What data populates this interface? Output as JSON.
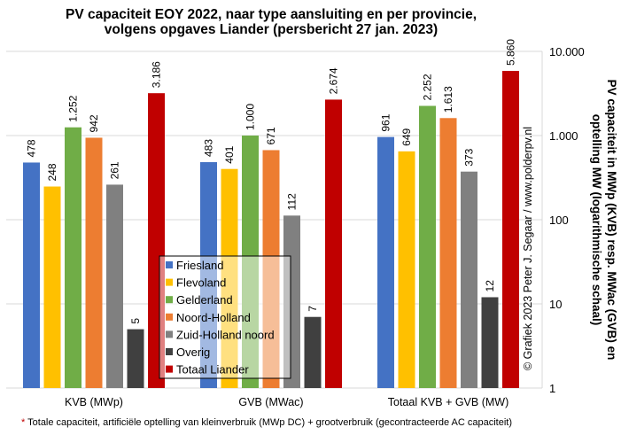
{
  "chart_data": {
    "type": "bar",
    "title": "PV capaciteit EOY 2022, naar type aansluiting  en per provincie,",
    "subtitle": "volgens opgaves Liander (persbericht 27 jan. 2023)",
    "categories": [
      "KVB (MWp)",
      "GVB (MWac)",
      "Totaal KVB + GVB (MW)"
    ],
    "series": [
      {
        "name": "Friesland",
        "color": "#4472C4",
        "values": [
          478,
          483,
          961
        ],
        "labels": [
          "478",
          "483",
          "961"
        ]
      },
      {
        "name": "Flevoland",
        "color": "#FFC000",
        "values": [
          248,
          401,
          649
        ],
        "labels": [
          "248",
          "401",
          "649"
        ]
      },
      {
        "name": "Gelderland",
        "color": "#70AD47",
        "values": [
          1252,
          1000,
          2252
        ],
        "labels": [
          "1.252",
          "1.000",
          "2.252"
        ]
      },
      {
        "name": "Noord-Holland",
        "color": "#ED7D31",
        "values": [
          942,
          671,
          1613
        ],
        "labels": [
          "942",
          "671",
          "1.613"
        ]
      },
      {
        "name": "Zuid-Holland noord",
        "color": "#808080",
        "values": [
          261,
          112,
          373
        ],
        "labels": [
          "261",
          "112",
          "373"
        ]
      },
      {
        "name": "Overig",
        "color": "#404040",
        "values": [
          5,
          7,
          12
        ],
        "labels": [
          "5",
          "7",
          "12"
        ]
      },
      {
        "name": "Totaal Liander",
        "color": "#C00000",
        "values": [
          3186,
          2674,
          5860
        ],
        "labels": [
          "3.186",
          "2.674",
          "5.860"
        ]
      }
    ],
    "ylabel": "PV capaciteit in MWp (KVB) resp. MWac (GVB) en optelling MW (logarithmische schaal)",
    "ylabel_lines": [
      "PV capaciteit in MWp (KVB) resp. MWac (GVB) en",
      "optelling MW (logarithmische  schaal)"
    ],
    "yscale": "log",
    "ylim": [
      1,
      10000
    ],
    "yticks": [
      1,
      10,
      100,
      1000,
      10000
    ],
    "ytick_labels": [
      "1",
      "10",
      "100",
      "1.000",
      "10.000"
    ],
    "grid": true,
    "legend_position": "center-left",
    "credit": "© Grafiek 2023  Peter J. Segaar / www.polderpv.nl",
    "footnote_star": "*",
    "footnote": " Totale capaciteit, artificiële optelling van kleinverbruik (MWp DC) + grootverbruik (gecontracteerde AC capaciteit)"
  }
}
